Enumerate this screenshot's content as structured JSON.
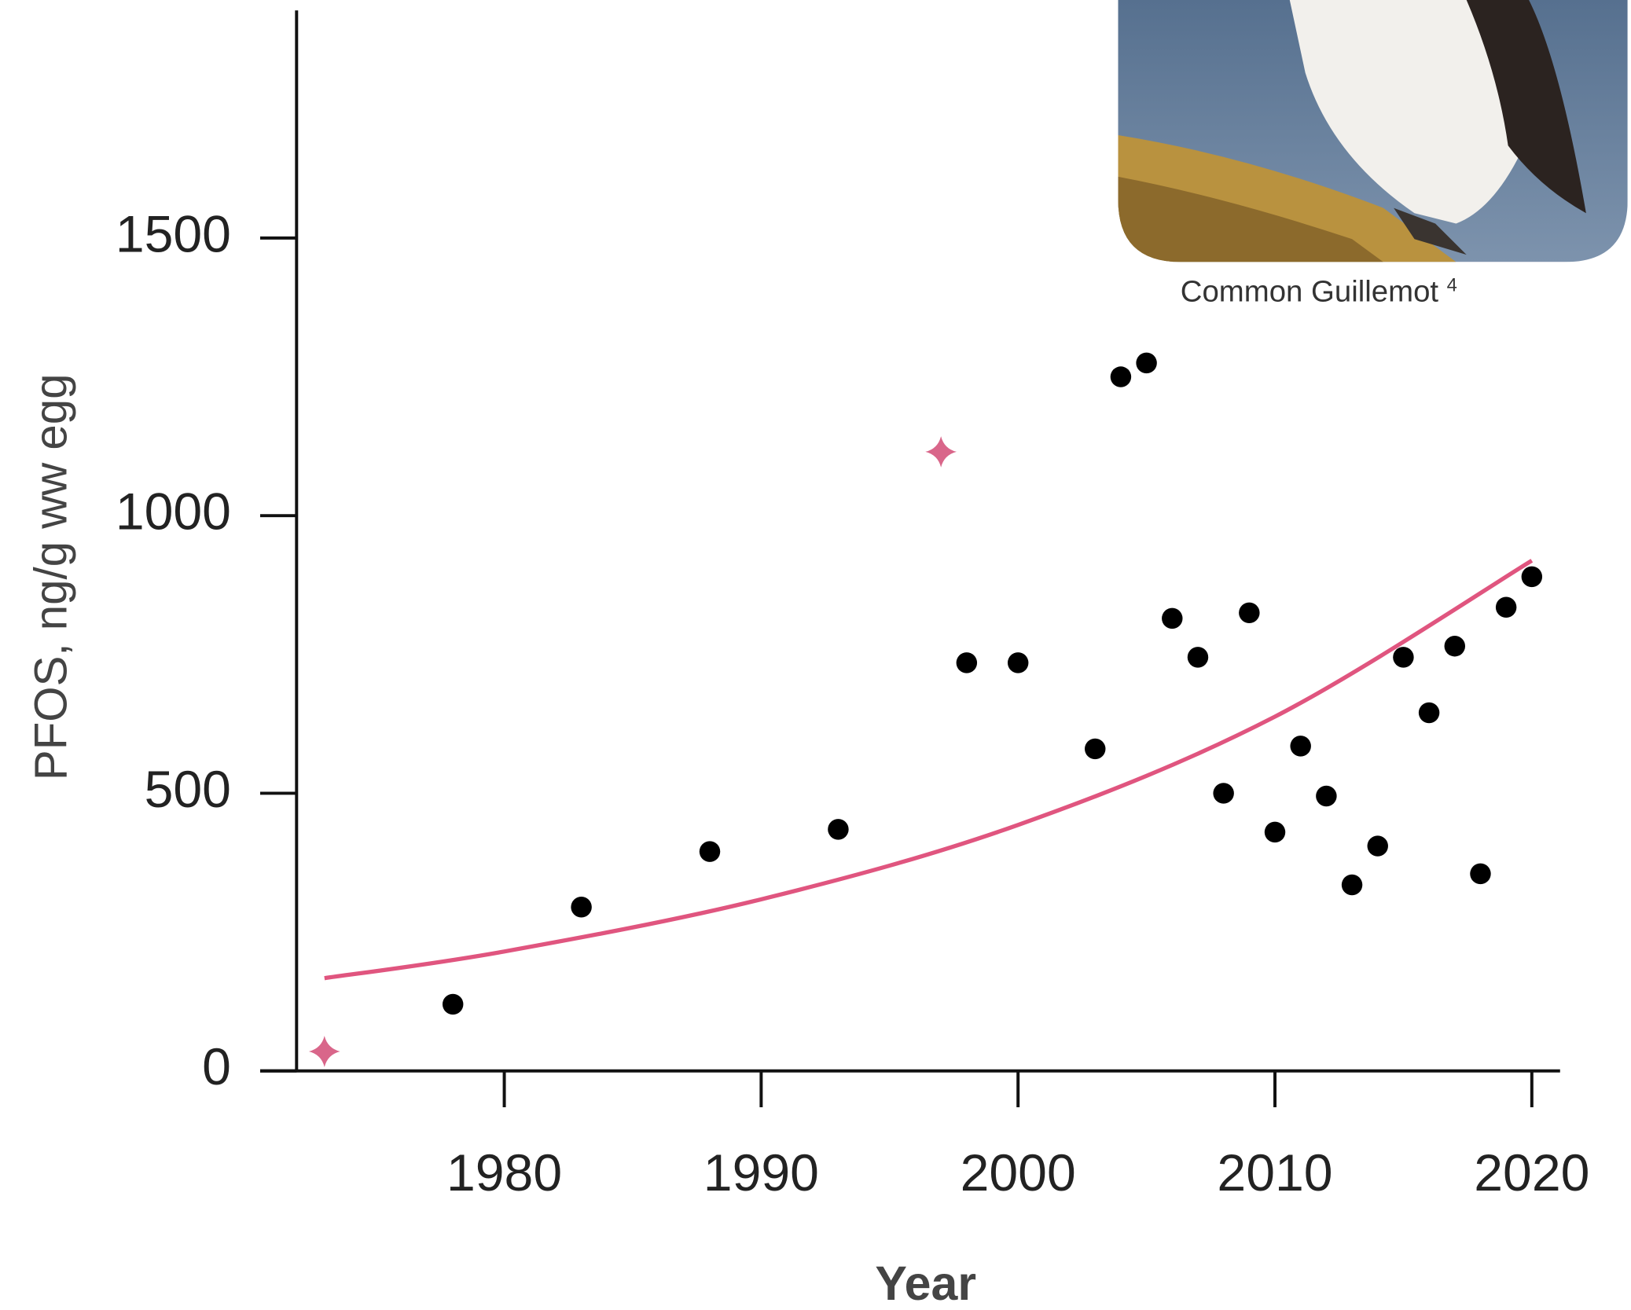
{
  "chart_data": {
    "type": "scatter",
    "x_label": "Year",
    "y_label": "PFOS, ng/g ww egg",
    "photo_caption": "Common Guillemot",
    "photo_caption_ref": "4",
    "xlim": [
      1970.7,
      2021.1
    ],
    "ylim": [
      0,
      1910
    ],
    "xticks": [
      1980,
      1990,
      2000,
      2010,
      2020
    ],
    "yticks": [
      0,
      500,
      1000,
      1500
    ],
    "series": [
      {
        "color": "#000000",
        "marker": "circle",
        "x": [
          1978,
          1983,
          1988,
          1993,
          1998,
          2000,
          2003,
          2004,
          2005,
          2006,
          2007,
          2008,
          2009,
          2010,
          2011,
          2012,
          2013,
          2014,
          2015,
          2016,
          2017,
          2018,
          2019,
          2020
        ],
        "values": [
          120,
          295,
          395,
          435,
          735,
          735,
          580,
          1250,
          1275,
          815,
          745,
          500,
          825,
          430,
          585,
          495,
          335,
          405,
          745,
          645,
          765,
          355,
          835,
          890
        ]
      },
      {
        "color": "#d9668a",
        "marker": "diamond",
        "x": [
          1973,
          1997
        ],
        "values": [
          35,
          1115
        ]
      },
      {
        "color": "#e0557f",
        "marker": "line",
        "x": [
          1973,
          1980,
          1990,
          2000,
          2010,
          2020
        ],
        "values": [
          167,
          215,
          309,
          443,
          638,
          919
        ]
      }
    ]
  }
}
